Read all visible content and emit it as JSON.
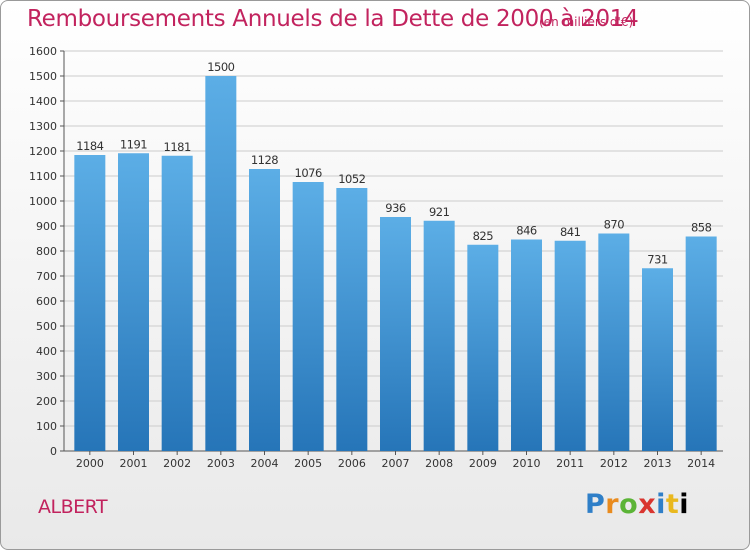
{
  "title": "Remboursements Annuels de la Dette de 2000 à 2014",
  "subtitle": "(en milliers d'€)",
  "commune": "ALBERT",
  "logo_letters": [
    "P",
    "r",
    "o",
    "x",
    "i",
    "t",
    "i"
  ],
  "colors": {
    "title": "#c2235e",
    "bar_top": "#5caee6",
    "bar_bottom": "#2675b8",
    "grid": "#cccccc"
  },
  "chart_data": {
    "type": "bar",
    "categories": [
      "2000",
      "2001",
      "2002",
      "2003",
      "2004",
      "2005",
      "2006",
      "2007",
      "2008",
      "2009",
      "2010",
      "2011",
      "2012",
      "2013",
      "2014"
    ],
    "values": [
      1184,
      1191,
      1181,
      1500,
      1128,
      1076,
      1052,
      936,
      921,
      825,
      846,
      841,
      870,
      731,
      858
    ],
    "ylim": [
      0,
      1600
    ],
    "yticks": [
      0,
      100,
      200,
      300,
      400,
      500,
      600,
      700,
      800,
      900,
      1000,
      1100,
      1200,
      1300,
      1400,
      1500,
      1600
    ],
    "grid": true,
    "data_labels": true
  }
}
